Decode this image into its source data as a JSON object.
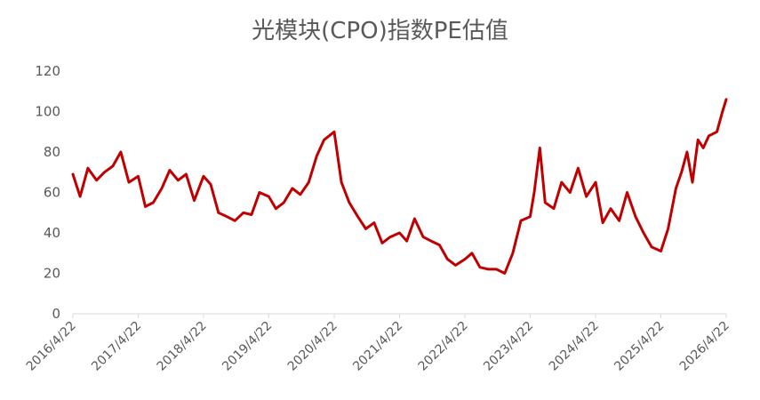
{
  "chart_data": {
    "type": "line",
    "title": "光模块(CPO)指数PE估值",
    "xlabel": "",
    "ylabel": "",
    "ylim": [
      0,
      120
    ],
    "yticks": [
      0,
      20,
      40,
      60,
      80,
      100,
      120
    ],
    "grid": false,
    "legend": "none",
    "x_tick_labels": [
      "2016/4/22",
      "2017/4/22",
      "2018/4/22",
      "2019/4/22",
      "2020/4/22",
      "2021/4/22",
      "2022/4/22",
      "2023/4/22",
      "2024/4/22",
      "2025/4/22",
      "2026/4/22"
    ],
    "series": [
      {
        "color": "#C00000",
        "x": [
          "2016/4/22",
          "2016/6/1",
          "2016/7/15",
          "2016/9/1",
          "2016/10/15",
          "2016/12/1",
          "2017/1/15",
          "2017/3/1",
          "2017/4/22",
          "2017/6/1",
          "2017/7/15",
          "2017/9/1",
          "2017/10/15",
          "2017/12/1",
          "2018/1/15",
          "2018/3/1",
          "2018/4/22",
          "2018/6/1",
          "2018/7/15",
          "2018/9/1",
          "2018/10/15",
          "2018/12/1",
          "2019/1/15",
          "2019/3/1",
          "2019/4/22",
          "2019/6/1",
          "2019/7/15",
          "2019/9/1",
          "2019/10/15",
          "2019/12/1",
          "2020/1/15",
          "2020/2/25",
          "2020/4/22",
          "2020/6/1",
          "2020/7/15",
          "2020/9/1",
          "2020/10/15",
          "2020/12/1",
          "2021/1/15",
          "2021/3/1",
          "2021/4/22",
          "2021/6/1",
          "2021/7/15",
          "2021/9/1",
          "2021/10/15",
          "2021/12/1",
          "2022/1/15",
          "2022/3/1",
          "2022/4/22",
          "2022/6/1",
          "2022/7/15",
          "2022/9/1",
          "2022/10/15",
          "2022/12/1",
          "2023/1/15",
          "2023/3/1",
          "2023/4/22",
          "2023/5/15",
          "2023/6/15",
          "2023/7/15",
          "2023/9/1",
          "2023/10/15",
          "2023/12/1",
          "2024/1/15",
          "2024/3/1",
          "2024/4/22",
          "2024/6/1",
          "2024/7/15",
          "2024/9/1",
          "2024/10/15",
          "2024/12/1",
          "2025/1/15",
          "2025/3/1",
          "2025/4/22",
          "2025/6/1",
          "2025/7/15",
          "2025/8/15",
          "2025/9/15",
          "2025/10/15",
          "2025/11/15",
          "2025/12/15",
          "2026/1/15",
          "2026/3/1",
          "2026/4/1",
          "2026/4/22"
        ],
        "values": [
          69,
          58,
          72,
          66,
          70,
          73,
          80,
          65,
          68,
          53,
          55,
          62,
          71,
          66,
          69,
          56,
          68,
          64,
          50,
          48,
          46,
          50,
          49,
          60,
          58,
          52,
          55,
          62,
          59,
          65,
          78,
          86,
          90,
          65,
          55,
          48,
          42,
          45,
          35,
          38,
          40,
          36,
          47,
          38,
          36,
          34,
          27,
          24,
          27,
          30,
          23,
          22,
          22,
          20,
          30,
          46,
          48,
          60,
          82,
          55,
          52,
          65,
          60,
          72,
          58,
          65,
          45,
          52,
          46,
          60,
          48,
          40,
          33,
          31,
          42,
          62,
          70,
          80,
          65,
          86,
          82,
          88,
          90,
          100,
          106
        ]
      }
    ]
  }
}
